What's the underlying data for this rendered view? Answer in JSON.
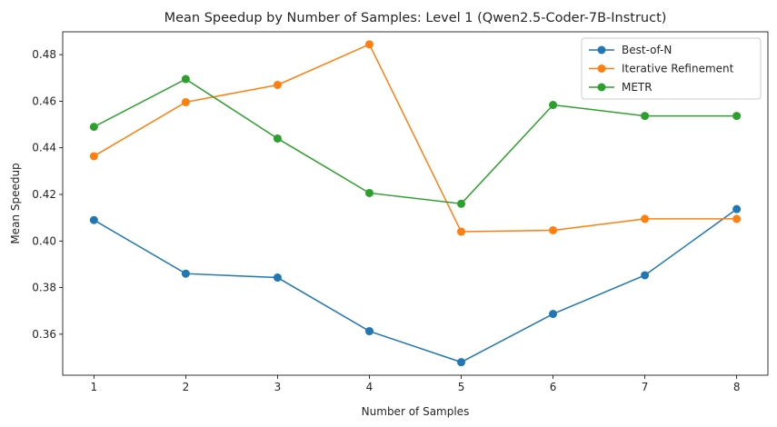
{
  "chart_data": {
    "type": "line",
    "title": "Mean Speedup by Number of Samples: Level 1 (Qwen2.5-Coder-7B-Instruct)",
    "xlabel": "Number of Samples",
    "ylabel": "Mean Speedup",
    "x": [
      1,
      2,
      3,
      4,
      5,
      6,
      7,
      8
    ],
    "xlim": [
      0.66,
      8.34
    ],
    "ylim": [
      0.3424,
      0.4898
    ],
    "yticks": [
      0.36,
      0.38,
      0.4,
      0.42,
      0.44,
      0.46,
      0.48
    ],
    "ytick_labels": [
      "0.36",
      "0.38",
      "0.40",
      "0.42",
      "0.44",
      "0.46",
      "0.48"
    ],
    "xtick_labels": [
      "1",
      "2",
      "3",
      "4",
      "5",
      "6",
      "7",
      "8"
    ],
    "grid": false,
    "legend_position": "top-right",
    "series": [
      {
        "name": "Best-of-N",
        "color": "#1f77b4",
        "values": [
          0.409,
          0.386,
          0.3843,
          0.3613,
          0.348,
          0.3687,
          0.3853,
          0.4137
        ]
      },
      {
        "name": "Iterative Refinement",
        "color": "#ff7f0e",
        "values": [
          0.4364,
          0.4596,
          0.467,
          0.4844,
          0.404,
          0.4046,
          0.4095,
          0.4095
        ]
      },
      {
        "name": "METR",
        "color": "#2ca02c",
        "values": [
          0.449,
          0.4695,
          0.444,
          0.4206,
          0.416,
          0.4584,
          0.4537,
          0.4537
        ]
      }
    ]
  }
}
